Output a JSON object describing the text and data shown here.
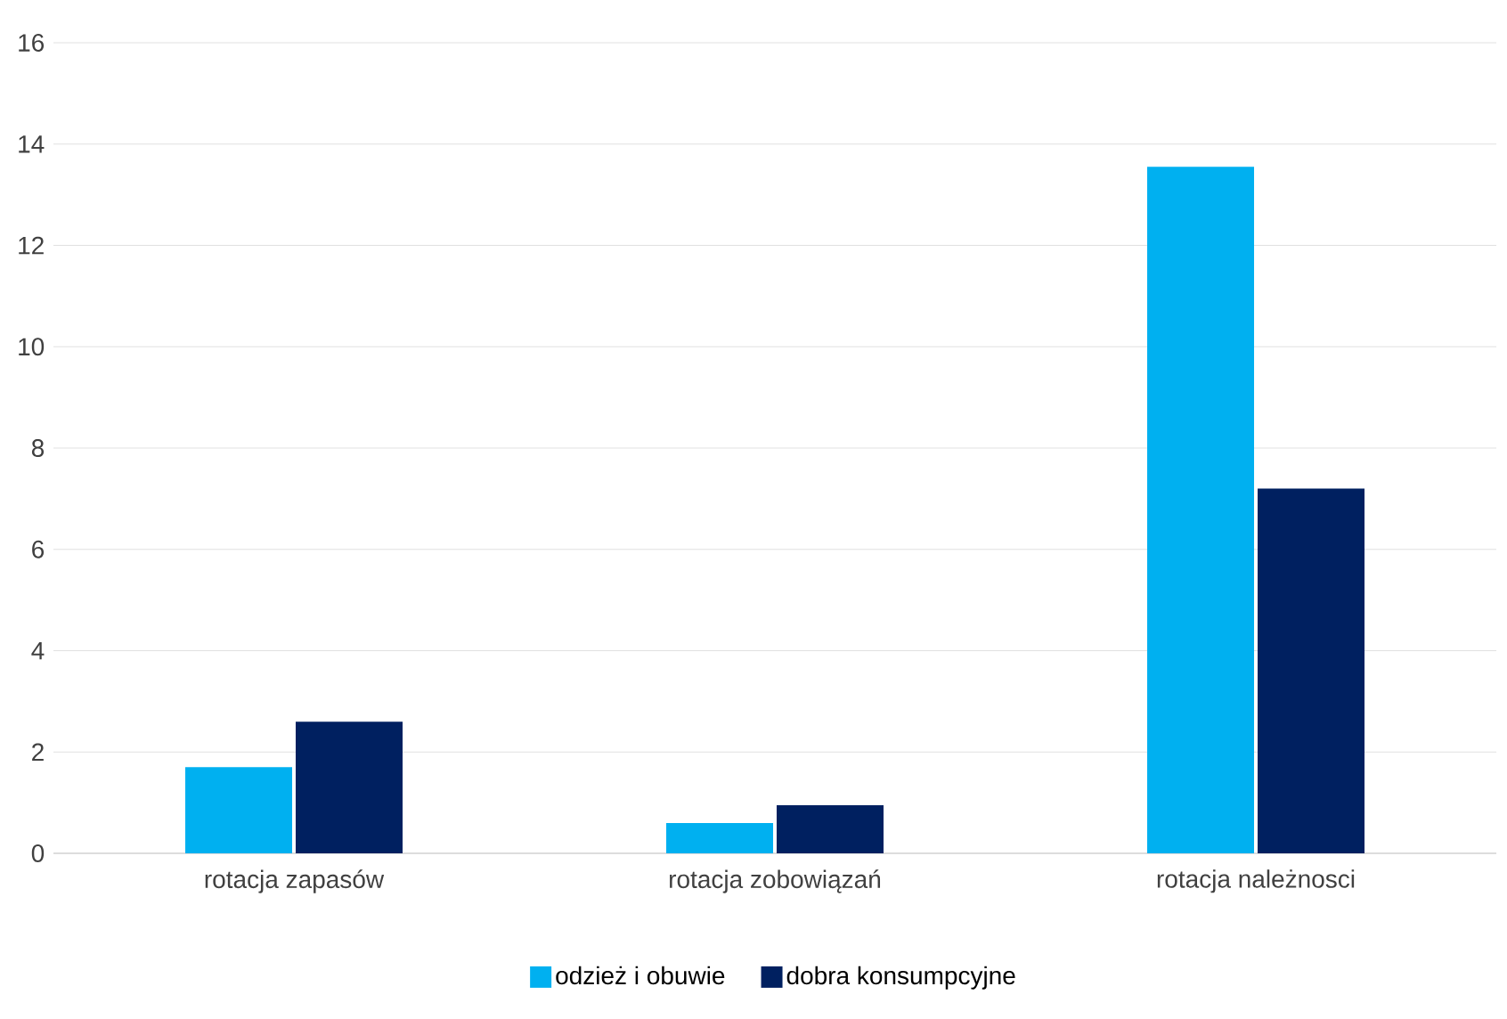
{
  "chart_data": {
    "type": "bar",
    "categories": [
      "rotacja zapasów",
      "rotacja zobowiązań",
      "rotacja należnosci"
    ],
    "series": [
      {
        "name": "odzież i obuwie",
        "color": "#00b0f0",
        "values": [
          1.7,
          0.6,
          13.55
        ]
      },
      {
        "name": "dobra konsumpcyjne",
        "color": "#002060",
        "values": [
          2.6,
          0.95,
          7.2
        ]
      }
    ],
    "ylim": [
      0,
      16
    ],
    "yticks": [
      0,
      2,
      4,
      6,
      8,
      10,
      12,
      14,
      16
    ],
    "grid": "y",
    "legend": "bottom"
  }
}
